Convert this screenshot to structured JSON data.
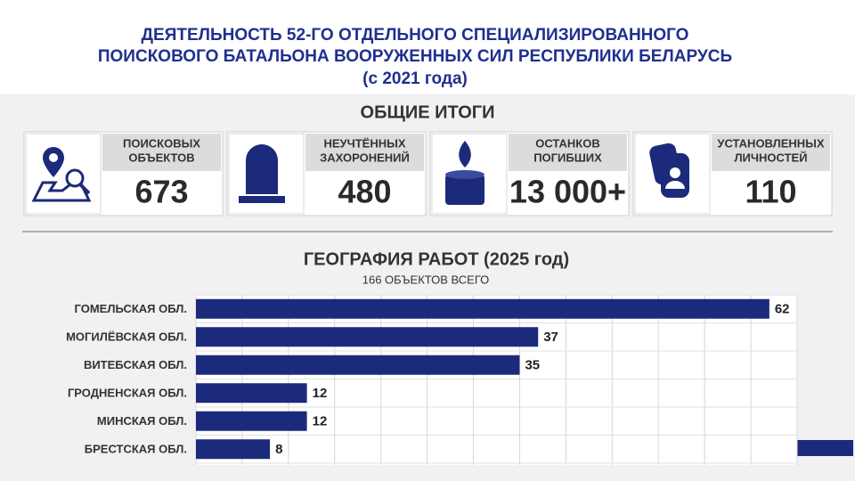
{
  "header": {
    "title": [
      "ДЕЯТЕЛЬНОСТЬ 52-ГО ОТДЕЛЬНОГО СПЕЦИАЛИЗИРОВАННОГО",
      "ПОИСКОВОГО БАТАЛЬОНА ВООРУЖЕННЫХ СИЛ РЕСПУБЛИКИ БЕЛАРУСЬ",
      "(с 2021 года)"
    ]
  },
  "summary": {
    "title": "ОБЩИЕ ИТОГИ",
    "stats": [
      {
        "label": [
          "ПОИСКОВЫХ",
          "ОБЪЕКТОВ"
        ],
        "value": "673"
      },
      {
        "label": [
          "НЕУЧТЁННЫХ",
          "ЗАХОРОНЕНИЙ"
        ],
        "value": "480"
      },
      {
        "label": [
          "ОСТАНКОВ",
          "ПОГИБШИХ"
        ],
        "value": "13 000+"
      },
      {
        "label": [
          "УСТАНОВЛЕННЫХ",
          "ЛИЧНОСТЕЙ"
        ],
        "value": "110"
      }
    ]
  },
  "chart_data": {
    "type": "hbar",
    "title": "ГЕОГРАФИЯ РАБОТ (2025 год)",
    "subtitle": "166 ОБЪЕКТОВ ВСЕГО",
    "categories": [
      "ГОМЕЛЬСКАЯ ОБЛ.",
      "МОГИЛЁВСКАЯ ОБЛ.",
      "ВИТЕБСКАЯ ОБЛ.",
      "ГРОДНЕНСКАЯ ОБЛ.",
      "МИНСКАЯ ОБЛ.",
      "БРЕСТСКАЯ ОБЛ."
    ],
    "values": [
      62,
      37,
      35,
      12,
      12,
      8
    ],
    "color": "#1c2a7c",
    "xlim": [
      0,
      65
    ],
    "xticks": [
      0,
      5,
      10,
      15,
      20,
      25,
      30,
      35,
      40,
      45,
      50,
      55,
      60,
      65
    ],
    "grid": true
  }
}
